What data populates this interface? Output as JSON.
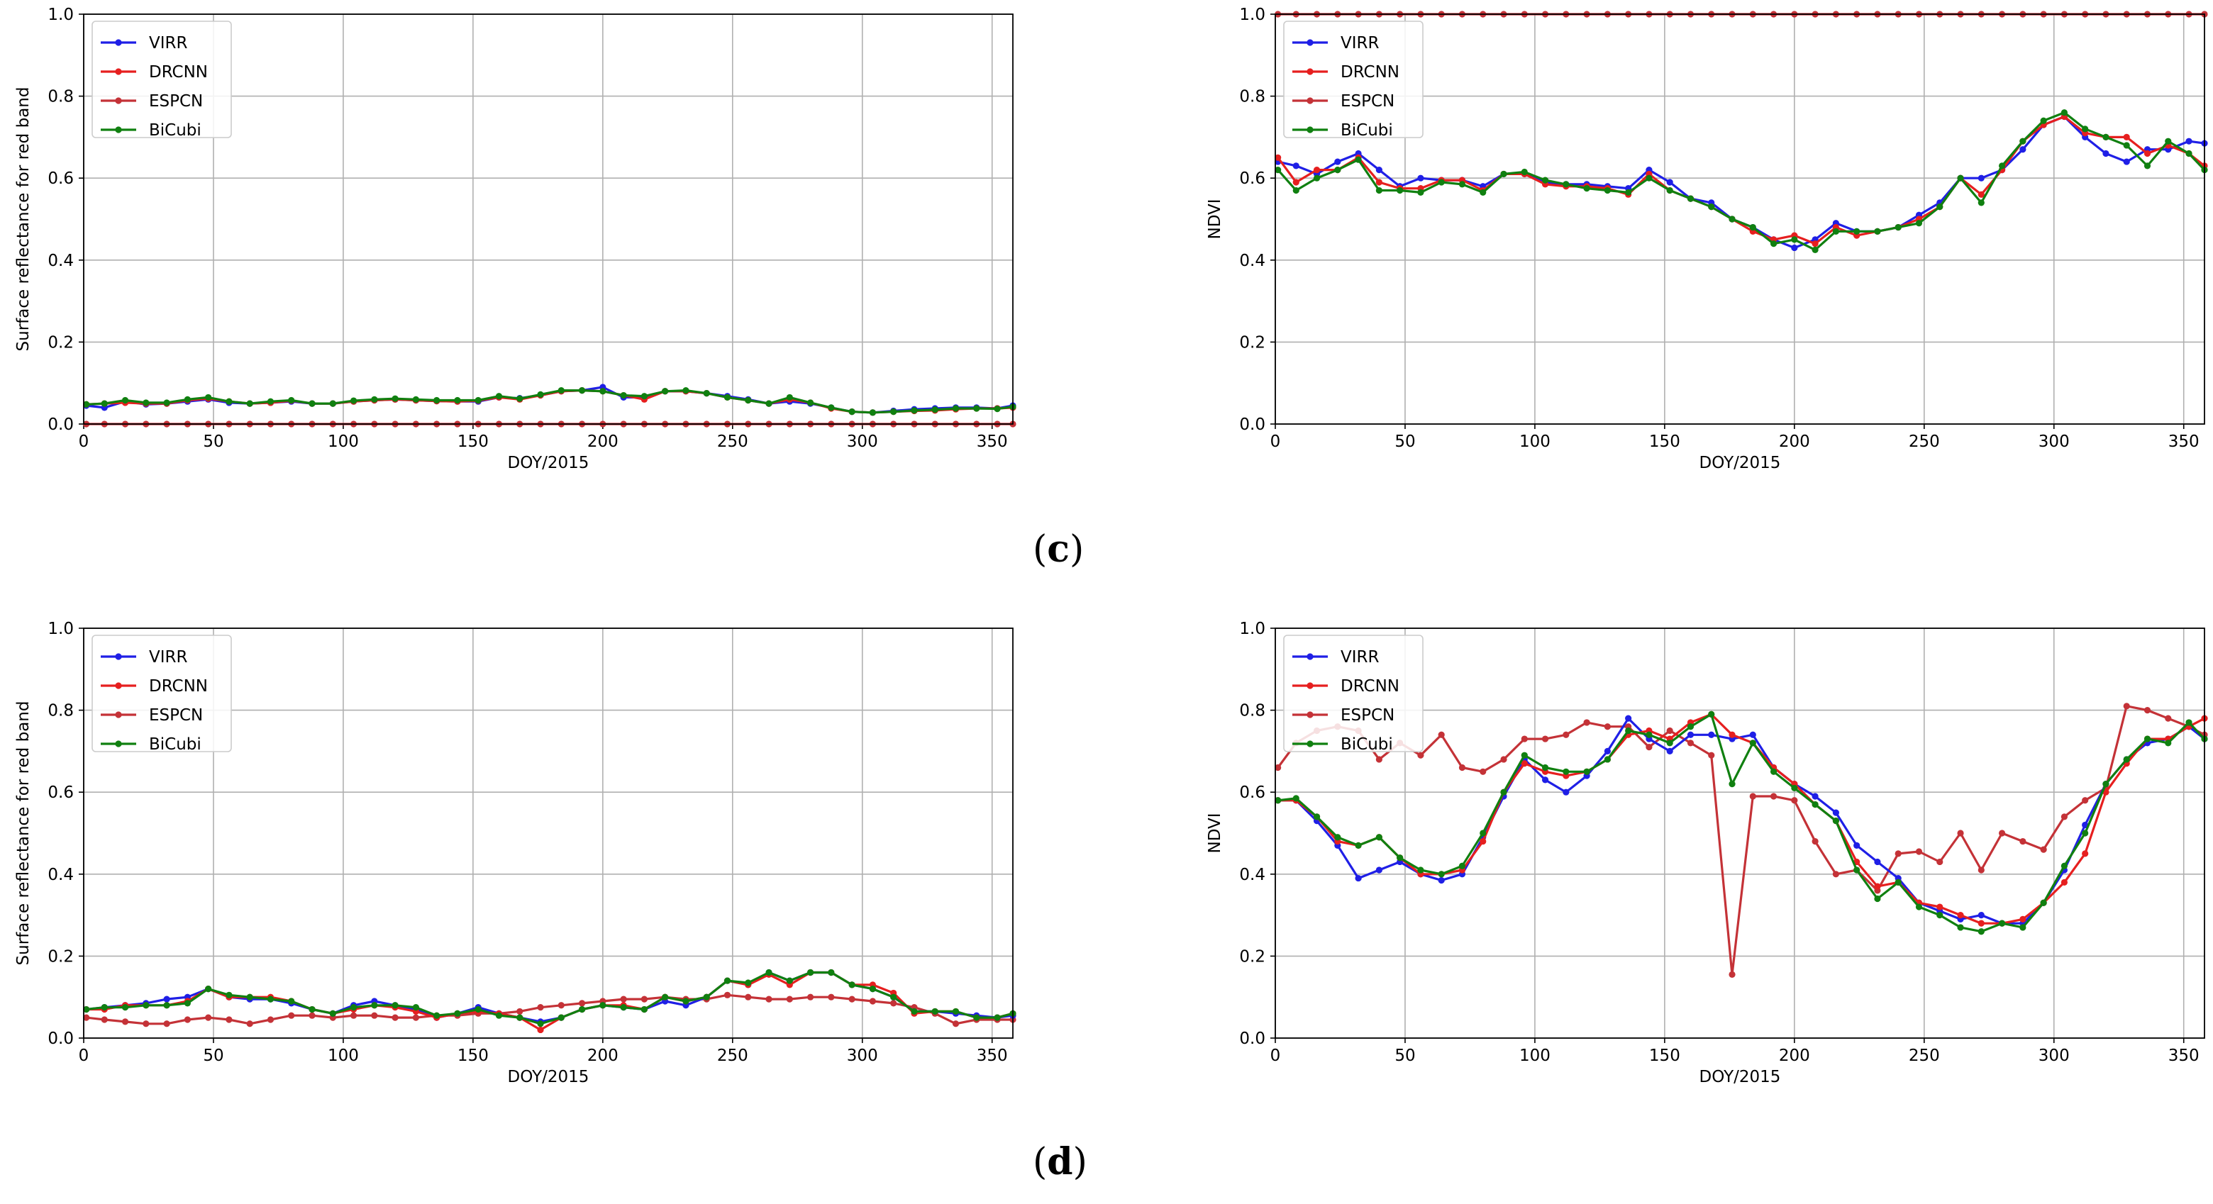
{
  "figure_labels": [
    {
      "id": "c",
      "open": "(",
      "letter": "c",
      "close": ")"
    },
    {
      "id": "d",
      "open": "(",
      "letter": "d",
      "close": ")"
    }
  ],
  "series_colors": {
    "VIRR": "#1f1fe6",
    "DRCNN": "#e61f1f",
    "ESPCN": "#c43237",
    "BiCubi": "#108010"
  },
  "chart_data": [
    {
      "id": "c-red",
      "type": "line",
      "title": "",
      "xlabel": "DOY/2015",
      "ylabel": "Surface reflectance for red band",
      "xlim": [
        0,
        358
      ],
      "ylim": [
        0,
        1.0
      ],
      "xticks": [
        "0",
        "50",
        "100",
        "150",
        "200",
        "250",
        "300",
        "350"
      ],
      "yticks": [
        "0.0",
        "0.2",
        "0.4",
        "0.6",
        "0.8",
        "1.0"
      ],
      "grid": true,
      "legend": "top-left",
      "x": [
        1,
        8,
        16,
        24,
        32,
        40,
        48,
        56,
        64,
        72,
        80,
        88,
        96,
        104,
        112,
        120,
        128,
        136,
        144,
        152,
        160,
        168,
        176,
        184,
        192,
        200,
        208,
        216,
        224,
        232,
        240,
        248,
        256,
        264,
        272,
        280,
        288,
        296,
        304,
        312,
        320,
        328,
        336,
        344,
        352,
        358
      ],
      "series": [
        {
          "name": "VIRR",
          "values": [
            0.045,
            0.04,
            0.055,
            0.048,
            0.05,
            0.055,
            0.06,
            0.052,
            0.05,
            0.052,
            0.055,
            0.05,
            0.05,
            0.055,
            0.058,
            0.06,
            0.058,
            0.056,
            0.055,
            0.055,
            0.065,
            0.063,
            0.07,
            0.08,
            0.082,
            0.09,
            0.065,
            0.065,
            0.08,
            0.08,
            0.075,
            0.068,
            0.06,
            0.05,
            0.055,
            0.05,
            0.04,
            0.03,
            0.028,
            0.032,
            0.036,
            0.038,
            0.04,
            0.04,
            0.038,
            0.045
          ]
        },
        {
          "name": "DRCNN",
          "values": [
            0.048,
            0.05,
            0.052,
            0.05,
            0.05,
            0.058,
            0.062,
            0.055,
            0.05,
            0.052,
            0.057,
            0.05,
            0.05,
            0.055,
            0.058,
            0.06,
            0.058,
            0.056,
            0.055,
            0.057,
            0.065,
            0.06,
            0.07,
            0.08,
            0.082,
            0.08,
            0.07,
            0.06,
            0.08,
            0.08,
            0.075,
            0.065,
            0.058,
            0.05,
            0.06,
            0.052,
            0.038,
            0.03,
            0.028,
            0.03,
            0.032,
            0.033,
            0.036,
            0.038,
            0.038,
            0.04
          ]
        },
        {
          "name": "ESPCN",
          "values": [
            0.0,
            0.0,
            0.0,
            0.0,
            0.0,
            0.0,
            0.0,
            0.0,
            0.0,
            0.0,
            0.0,
            0.0,
            0.0,
            0.0,
            0.0,
            0.0,
            0.0,
            0.0,
            0.0,
            0.0,
            0.0,
            0.0,
            0.0,
            0.0,
            0.0,
            0.0,
            0.0,
            0.0,
            0.0,
            0.0,
            0.0,
            0.0,
            0.0,
            0.0,
            0.0,
            0.0,
            0.0,
            0.0,
            0.0,
            0.0,
            0.0,
            0.0,
            0.0,
            0.0,
            0.0,
            0.0
          ]
        },
        {
          "name": "BiCubi",
          "values": [
            0.048,
            0.05,
            0.058,
            0.052,
            0.052,
            0.06,
            0.065,
            0.055,
            0.05,
            0.055,
            0.058,
            0.05,
            0.05,
            0.057,
            0.06,
            0.062,
            0.06,
            0.058,
            0.058,
            0.058,
            0.068,
            0.062,
            0.072,
            0.082,
            0.082,
            0.08,
            0.07,
            0.068,
            0.08,
            0.082,
            0.075,
            0.065,
            0.058,
            0.05,
            0.065,
            0.052,
            0.04,
            0.03,
            0.028,
            0.03,
            0.033,
            0.035,
            0.038,
            0.038,
            0.037,
            0.042
          ]
        }
      ]
    },
    {
      "id": "c-ndvi",
      "type": "line",
      "title": "",
      "xlabel": "DOY/2015",
      "ylabel": "NDVI",
      "xlim": [
        0,
        358
      ],
      "ylim": [
        0,
        1.0
      ],
      "xticks": [
        "0",
        "50",
        "100",
        "150",
        "200",
        "250",
        "300",
        "350"
      ],
      "yticks": [
        "0.0",
        "0.2",
        "0.4",
        "0.6",
        "0.8",
        "1.0"
      ],
      "grid": true,
      "legend": "top-left",
      "x": [
        1,
        8,
        16,
        24,
        32,
        40,
        48,
        56,
        64,
        72,
        80,
        88,
        96,
        104,
        112,
        120,
        128,
        136,
        144,
        152,
        160,
        168,
        176,
        184,
        192,
        200,
        208,
        216,
        224,
        232,
        240,
        248,
        256,
        264,
        272,
        280,
        288,
        296,
        304,
        312,
        320,
        328,
        336,
        344,
        352,
        358
      ],
      "series": [
        {
          "name": "VIRR",
          "values": [
            0.64,
            0.63,
            0.61,
            0.64,
            0.66,
            0.62,
            0.58,
            0.6,
            0.595,
            0.595,
            0.58,
            0.61,
            0.61,
            0.59,
            0.585,
            0.585,
            0.58,
            0.575,
            0.62,
            0.59,
            0.55,
            0.54,
            0.5,
            0.48,
            0.45,
            0.43,
            0.45,
            0.49,
            0.47,
            0.47,
            0.48,
            0.51,
            0.54,
            0.6,
            0.6,
            0.62,
            0.67,
            0.73,
            0.75,
            0.7,
            0.66,
            0.64,
            0.67,
            0.67,
            0.69,
            0.685
          ]
        },
        {
          "name": "DRCNN",
          "values": [
            0.65,
            0.59,
            0.62,
            0.62,
            0.65,
            0.59,
            0.575,
            0.575,
            0.595,
            0.595,
            0.57,
            0.61,
            0.61,
            0.585,
            0.58,
            0.58,
            0.575,
            0.56,
            0.61,
            0.57,
            0.55,
            0.53,
            0.5,
            0.47,
            0.45,
            0.46,
            0.44,
            0.48,
            0.46,
            0.47,
            0.48,
            0.5,
            0.53,
            0.6,
            0.56,
            0.62,
            0.69,
            0.73,
            0.75,
            0.71,
            0.7,
            0.7,
            0.66,
            0.68,
            0.66,
            0.63
          ]
        },
        {
          "name": "ESPCN",
          "values": [
            1.0,
            1.0,
            1.0,
            1.0,
            1.0,
            1.0,
            1.0,
            1.0,
            1.0,
            1.0,
            1.0,
            1.0,
            1.0,
            1.0,
            1.0,
            1.0,
            1.0,
            1.0,
            1.0,
            1.0,
            1.0,
            1.0,
            1.0,
            1.0,
            1.0,
            1.0,
            1.0,
            1.0,
            1.0,
            1.0,
            1.0,
            1.0,
            1.0,
            1.0,
            1.0,
            1.0,
            1.0,
            1.0,
            1.0,
            1.0,
            1.0,
            1.0,
            1.0,
            1.0,
            1.0,
            1.0
          ]
        },
        {
          "name": "BiCubi",
          "values": [
            0.62,
            0.57,
            0.6,
            0.62,
            0.645,
            0.57,
            0.57,
            0.565,
            0.59,
            0.585,
            0.565,
            0.61,
            0.615,
            0.595,
            0.585,
            0.575,
            0.57,
            0.565,
            0.6,
            0.57,
            0.55,
            0.53,
            0.5,
            0.48,
            0.44,
            0.45,
            0.425,
            0.47,
            0.47,
            0.47,
            0.48,
            0.49,
            0.53,
            0.6,
            0.54,
            0.63,
            0.69,
            0.74,
            0.76,
            0.72,
            0.7,
            0.68,
            0.63,
            0.69,
            0.66,
            0.62
          ]
        }
      ]
    },
    {
      "id": "d-red",
      "type": "line",
      "title": "",
      "xlabel": "DOY/2015",
      "ylabel": "Surface reflectance for red band",
      "xlim": [
        0,
        358
      ],
      "ylim": [
        0,
        1.0
      ],
      "xticks": [
        "0",
        "50",
        "100",
        "150",
        "200",
        "250",
        "300",
        "350"
      ],
      "yticks": [
        "0.0",
        "0.2",
        "0.4",
        "0.6",
        "0.8",
        "1.0"
      ],
      "grid": true,
      "legend": "top-left",
      "x": [
        1,
        8,
        16,
        24,
        32,
        40,
        48,
        56,
        64,
        72,
        80,
        88,
        96,
        104,
        112,
        120,
        128,
        136,
        144,
        152,
        160,
        168,
        176,
        184,
        192,
        200,
        208,
        216,
        224,
        232,
        240,
        248,
        256,
        264,
        272,
        280,
        288,
        296,
        304,
        312,
        320,
        328,
        336,
        344,
        352,
        358
      ],
      "series": [
        {
          "name": "VIRR",
          "values": [
            0.07,
            0.075,
            0.08,
            0.085,
            0.095,
            0.1,
            0.12,
            0.1,
            0.095,
            0.095,
            0.085,
            0.07,
            0.06,
            0.08,
            0.09,
            0.08,
            0.07,
            0.05,
            0.06,
            0.075,
            0.06,
            0.05,
            0.04,
            0.05,
            0.07,
            0.08,
            0.075,
            0.07,
            0.09,
            0.08,
            0.1,
            0.14,
            0.13,
            0.16,
            0.14,
            0.16,
            0.16,
            0.13,
            0.12,
            0.1,
            0.065,
            0.065,
            0.06,
            0.055,
            0.05,
            0.055
          ]
        },
        {
          "name": "DRCNN",
          "values": [
            0.07,
            0.07,
            0.08,
            0.08,
            0.08,
            0.09,
            0.12,
            0.1,
            0.1,
            0.1,
            0.09,
            0.07,
            0.06,
            0.07,
            0.08,
            0.075,
            0.065,
            0.05,
            0.06,
            0.065,
            0.06,
            0.05,
            0.02,
            0.05,
            0.07,
            0.08,
            0.08,
            0.07,
            0.1,
            0.09,
            0.1,
            0.14,
            0.13,
            0.155,
            0.13,
            0.16,
            0.16,
            0.13,
            0.13,
            0.11,
            0.06,
            0.065,
            0.065,
            0.05,
            0.05,
            0.06
          ]
        },
        {
          "name": "ESPCN",
          "values": [
            0.05,
            0.045,
            0.04,
            0.035,
            0.035,
            0.045,
            0.05,
            0.045,
            0.035,
            0.045,
            0.055,
            0.055,
            0.05,
            0.055,
            0.055,
            0.05,
            0.05,
            0.055,
            0.055,
            0.06,
            0.06,
            0.065,
            0.075,
            0.08,
            0.085,
            0.09,
            0.095,
            0.095,
            0.1,
            0.095,
            0.095,
            0.105,
            0.1,
            0.095,
            0.095,
            0.1,
            0.1,
            0.095,
            0.09,
            0.085,
            0.075,
            0.06,
            0.035,
            0.045,
            0.045,
            0.045
          ]
        },
        {
          "name": "BiCubi",
          "values": [
            0.07,
            0.075,
            0.075,
            0.08,
            0.08,
            0.085,
            0.12,
            0.105,
            0.1,
            0.095,
            0.09,
            0.07,
            0.06,
            0.075,
            0.08,
            0.08,
            0.075,
            0.055,
            0.06,
            0.07,
            0.055,
            0.05,
            0.035,
            0.05,
            0.07,
            0.08,
            0.075,
            0.07,
            0.1,
            0.09,
            0.1,
            0.14,
            0.135,
            0.16,
            0.14,
            0.16,
            0.16,
            0.13,
            0.12,
            0.1,
            0.065,
            0.065,
            0.065,
            0.05,
            0.05,
            0.06
          ]
        }
      ]
    },
    {
      "id": "d-ndvi",
      "type": "line",
      "title": "",
      "xlabel": "DOY/2015",
      "ylabel": "NDVI",
      "xlim": [
        0,
        358
      ],
      "ylim": [
        0,
        1.0
      ],
      "xticks": [
        "0",
        "50",
        "100",
        "150",
        "200",
        "250",
        "300",
        "350"
      ],
      "yticks": [
        "0.0",
        "0.2",
        "0.4",
        "0.6",
        "0.8",
        "1.0"
      ],
      "grid": true,
      "legend": "top-left",
      "x": [
        1,
        8,
        16,
        24,
        32,
        40,
        48,
        56,
        64,
        72,
        80,
        88,
        96,
        104,
        112,
        120,
        128,
        136,
        144,
        152,
        160,
        168,
        176,
        184,
        192,
        200,
        208,
        216,
        224,
        232,
        240,
        248,
        256,
        264,
        272,
        280,
        288,
        296,
        304,
        312,
        320,
        328,
        336,
        344,
        352,
        358
      ],
      "series": [
        {
          "name": "VIRR",
          "values": [
            0.58,
            0.58,
            0.53,
            0.47,
            0.39,
            0.41,
            0.43,
            0.4,
            0.385,
            0.4,
            0.49,
            0.59,
            0.68,
            0.63,
            0.6,
            0.64,
            0.7,
            0.78,
            0.73,
            0.7,
            0.74,
            0.74,
            0.73,
            0.74,
            0.66,
            0.62,
            0.59,
            0.55,
            0.47,
            0.43,
            0.39,
            0.33,
            0.31,
            0.29,
            0.3,
            0.28,
            0.28,
            0.33,
            0.41,
            0.52,
            0.62,
            0.68,
            0.72,
            0.73,
            0.76,
            0.73
          ]
        },
        {
          "name": "DRCNN",
          "values": [
            0.58,
            0.58,
            0.54,
            0.48,
            0.47,
            0.49,
            0.44,
            0.4,
            0.4,
            0.41,
            0.48,
            0.6,
            0.67,
            0.65,
            0.64,
            0.65,
            0.68,
            0.74,
            0.75,
            0.73,
            0.77,
            0.79,
            0.74,
            0.72,
            0.66,
            0.62,
            0.57,
            0.53,
            0.43,
            0.37,
            0.38,
            0.33,
            0.32,
            0.3,
            0.28,
            0.28,
            0.29,
            0.33,
            0.38,
            0.45,
            0.6,
            0.67,
            0.73,
            0.73,
            0.76,
            0.78
          ]
        },
        {
          "name": "ESPCN",
          "values": [
            0.66,
            0.72,
            0.75,
            0.76,
            0.75,
            0.68,
            0.72,
            0.69,
            0.74,
            0.66,
            0.65,
            0.68,
            0.73,
            0.73,
            0.74,
            0.77,
            0.76,
            0.76,
            0.71,
            0.75,
            0.72,
            0.69,
            0.155,
            0.59,
            0.59,
            0.58,
            0.48,
            0.4,
            0.41,
            0.36,
            0.45,
            0.455,
            0.43,
            0.5,
            0.41,
            0.5,
            0.48,
            0.46,
            0.54,
            0.58,
            0.61,
            0.81,
            0.8,
            0.78,
            0.76,
            0.74
          ]
        },
        {
          "name": "BiCubi",
          "values": [
            0.58,
            0.585,
            0.54,
            0.49,
            0.47,
            0.49,
            0.44,
            0.41,
            0.4,
            0.42,
            0.5,
            0.6,
            0.69,
            0.66,
            0.65,
            0.65,
            0.68,
            0.75,
            0.74,
            0.72,
            0.76,
            0.79,
            0.62,
            0.72,
            0.65,
            0.61,
            0.57,
            0.53,
            0.41,
            0.34,
            0.38,
            0.32,
            0.3,
            0.27,
            0.26,
            0.28,
            0.27,
            0.33,
            0.42,
            0.5,
            0.62,
            0.68,
            0.73,
            0.72,
            0.77,
            0.73
          ]
        }
      ]
    }
  ]
}
